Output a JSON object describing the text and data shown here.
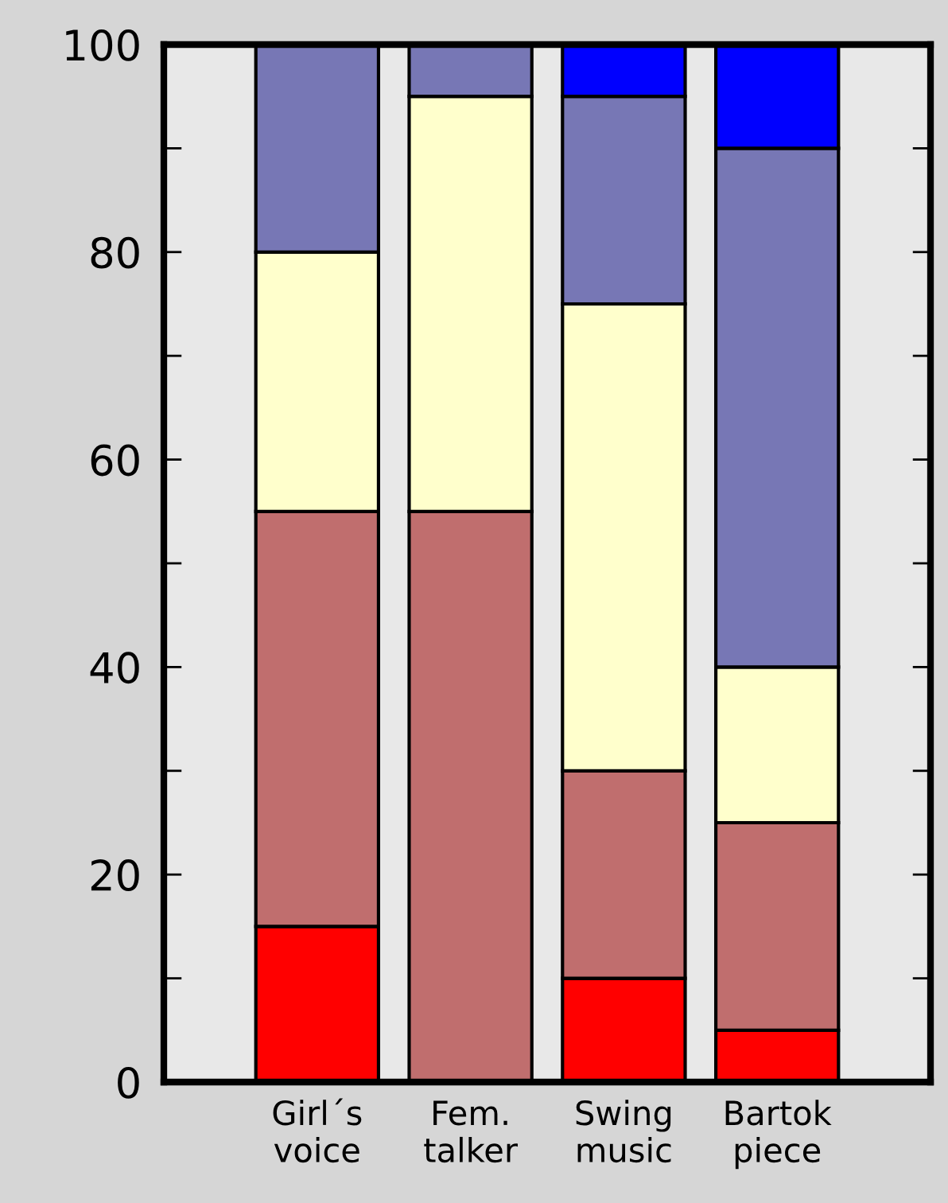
{
  "chart_data": {
    "type": "bar",
    "stacked": true,
    "categories": [
      "Girl´s\nvoice",
      "Fem.\ntalker",
      "Swing\nmusic",
      "Bartok\npiece"
    ],
    "series": [
      {
        "color": "#ff0000",
        "values": [
          15,
          0,
          10,
          5
        ]
      },
      {
        "color": "#c06e6e",
        "values": [
          40,
          55,
          20,
          20
        ]
      },
      {
        "color": "#ffffcc",
        "values": [
          25,
          40,
          45,
          15
        ]
      },
      {
        "color": "#7777b5",
        "values": [
          20,
          5,
          20,
          50
        ]
      },
      {
        "color": "#0000ff",
        "values": [
          0,
          0,
          5,
          10
        ]
      }
    ],
    "ylim": [
      0,
      100
    ],
    "yticks": [
      0,
      {
        "value": 10,
        "label": null
      },
      20,
      {
        "value": 30,
        "label": null
      },
      40,
      {
        "value": 50,
        "label": null
      },
      60,
      {
        "value": 70,
        "label": null
      },
      80,
      {
        "value": 90,
        "label": null
      },
      100
    ],
    "grid": false,
    "legend": false
  }
}
